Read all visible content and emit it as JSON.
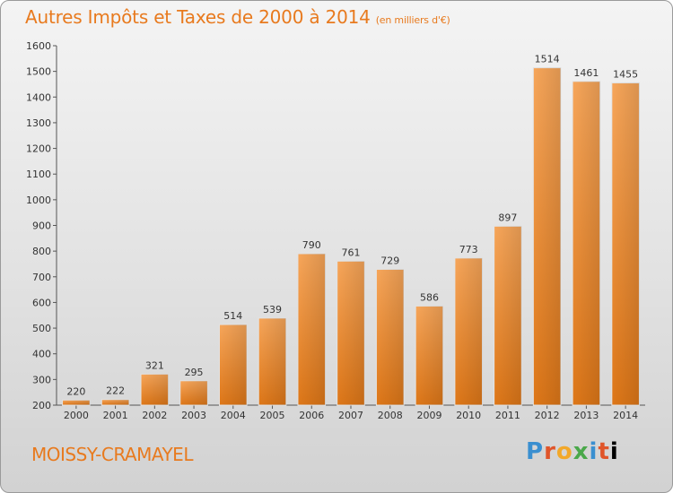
{
  "title": "Autres Impôts et Taxes de 2000 à 2014",
  "unit_note": "(en milliers d'€)",
  "city": "MOISSY-CRAMAYEL",
  "brand": [
    "P",
    "r",
    "o",
    "x",
    "i",
    "t",
    "i"
  ],
  "colors": {
    "bar": "#f0913a",
    "title": "#e87a1e"
  },
  "chart_data": {
    "type": "bar",
    "title": "Autres Impôts et Taxes de 2000 à 2014",
    "subtitle": "(en milliers d'€)",
    "categories": [
      "2000",
      "2001",
      "2002",
      "2003",
      "2004",
      "2005",
      "2006",
      "2007",
      "2008",
      "2009",
      "2010",
      "2011",
      "2012",
      "2013",
      "2014"
    ],
    "values": [
      220,
      222,
      321,
      295,
      514,
      539,
      790,
      761,
      729,
      586,
      773,
      897,
      1514,
      1461,
      1455
    ],
    "ylim": [
      200,
      1600
    ],
    "yticks": [
      200,
      300,
      400,
      500,
      600,
      700,
      800,
      900,
      1000,
      1100,
      1200,
      1300,
      1400,
      1500,
      1600
    ],
    "grid": false,
    "xlabel": "",
    "ylabel": ""
  }
}
